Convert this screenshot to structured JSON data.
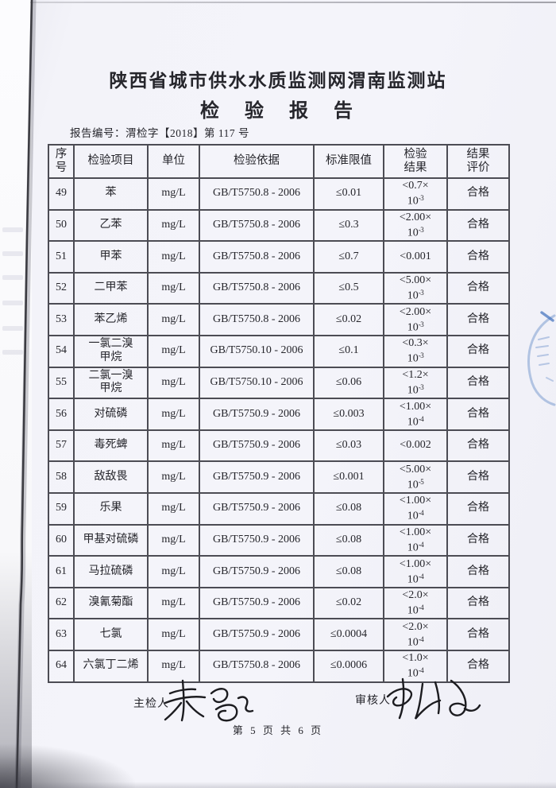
{
  "header": {
    "org_title": "陕西省城市供水水质监测网渭南监测站",
    "report_title": "检　验　报　告",
    "report_no": "报告编号：渭检字【2018】第 117 号"
  },
  "table": {
    "headers": [
      "序\n号",
      "检验项目",
      "单位",
      "检验依据",
      "标准限值",
      "检验\n结果",
      "结果\n评价"
    ],
    "rows": [
      {
        "no": "49",
        "item": "苯",
        "unit": "mg/L",
        "basis": "GB/T5750.8 - 2006",
        "limit": "≤0.01",
        "result_main": "<0.7×",
        "result_exp": "-3",
        "evaluation": "合格"
      },
      {
        "no": "50",
        "item": "乙苯",
        "unit": "mg/L",
        "basis": "GB/T5750.8 - 2006",
        "limit": "≤0.3",
        "result_main": "<2.00×",
        "result_exp": "-3",
        "evaluation": "合格"
      },
      {
        "no": "51",
        "item": "甲苯",
        "unit": "mg/L",
        "basis": "GB/T5750.8 - 2006",
        "limit": "≤0.7",
        "result_main": "<0.001",
        "result_exp": "",
        "evaluation": "合格"
      },
      {
        "no": "52",
        "item": "二甲苯",
        "unit": "mg/L",
        "basis": "GB/T5750.8 - 2006",
        "limit": "≤0.5",
        "result_main": "<5.00×",
        "result_exp": "-3",
        "evaluation": "合格"
      },
      {
        "no": "53",
        "item": "苯乙烯",
        "unit": "mg/L",
        "basis": "GB/T5750.8 - 2006",
        "limit": "≤0.02",
        "result_main": "<2.00×",
        "result_exp": "-3",
        "evaluation": "合格"
      },
      {
        "no": "54",
        "item": "一氯二溴\n甲烷",
        "unit": "mg/L",
        "basis": "GB/T5750.10 - 2006",
        "limit": "≤0.1",
        "result_main": "<0.3×",
        "result_exp": "-3",
        "evaluation": "合格"
      },
      {
        "no": "55",
        "item": "二氯一溴\n甲烷",
        "unit": "mg/L",
        "basis": "GB/T5750.10 - 2006",
        "limit": "≤0.06",
        "result_main": "<1.2×",
        "result_exp": "-3",
        "evaluation": "合格"
      },
      {
        "no": "56",
        "item": "对硫磷",
        "unit": "mg/L",
        "basis": "GB/T5750.9 - 2006",
        "limit": "≤0.003",
        "result_main": "<1.00×",
        "result_exp": "-4",
        "evaluation": "合格"
      },
      {
        "no": "57",
        "item": "毒死蜱",
        "unit": "mg/L",
        "basis": "GB/T5750.9 - 2006",
        "limit": "≤0.03",
        "result_main": "<0.002",
        "result_exp": "",
        "evaluation": "合格"
      },
      {
        "no": "58",
        "item": "敌敌畏",
        "unit": "mg/L",
        "basis": "GB/T5750.9 - 2006",
        "limit": "≤0.001",
        "result_main": "<5.00×",
        "result_exp": "-5",
        "evaluation": "合格"
      },
      {
        "no": "59",
        "item": "乐果",
        "unit": "mg/L",
        "basis": "GB/T5750.9 - 2006",
        "limit": "≤0.08",
        "result_main": "<1.00×",
        "result_exp": "-4",
        "evaluation": "合格"
      },
      {
        "no": "60",
        "item": "甲基对硫磷",
        "unit": "mg/L",
        "basis": "GB/T5750.9 - 2006",
        "limit": "≤0.08",
        "result_main": "<1.00×",
        "result_exp": "-4",
        "evaluation": "合格"
      },
      {
        "no": "61",
        "item": "马拉硫磷",
        "unit": "mg/L",
        "basis": "GB/T5750.9 - 2006",
        "limit": "≤0.08",
        "result_main": "<1.00×",
        "result_exp": "-4",
        "evaluation": "合格"
      },
      {
        "no": "62",
        "item": "溴氰菊酯",
        "unit": "mg/L",
        "basis": "GB/T5750.9 - 2006",
        "limit": "≤0.02",
        "result_main": "<2.0×",
        "result_exp": "-4",
        "evaluation": "合格"
      },
      {
        "no": "63",
        "item": "七氯",
        "unit": "mg/L",
        "basis": "GB/T5750.9 - 2006",
        "limit": "≤0.0004",
        "result_main": "<2.0×",
        "result_exp": "-4",
        "evaluation": "合格"
      },
      {
        "no": "64",
        "item": "六氯丁二烯",
        "unit": "mg/L",
        "basis": "GB/T5750.8 - 2006",
        "limit": "≤0.0006",
        "result_main": "<1.0×",
        "result_exp": "-4",
        "evaluation": "合格"
      }
    ]
  },
  "footer": {
    "inspector_label": "主检人",
    "reviewer_label": "审核人",
    "page_number": "第 5 页 共 6 页"
  },
  "colors": {
    "paper": "#f4f4fa",
    "table_border": "#4c4c54",
    "ink": "#26262c",
    "signature_ink": "#1c1c20",
    "stamp_blue": "#7b9cd0",
    "spine": "#3c3c42"
  }
}
